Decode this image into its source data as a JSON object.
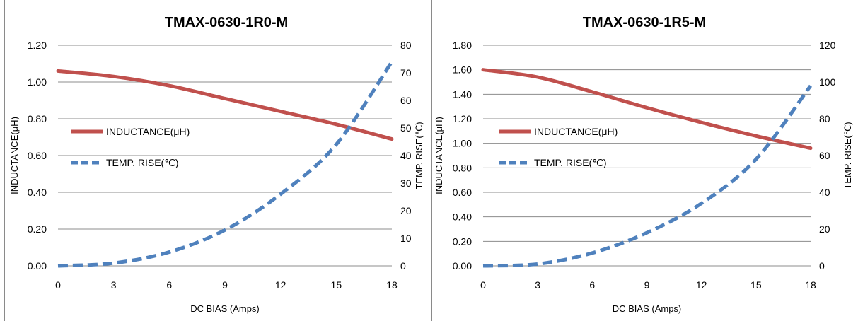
{
  "chart_data": [
    {
      "type": "line",
      "title": "TMAX-0630-1R0-M",
      "xlabel": "DC BIAS  (Amps)",
      "ylabel": "INDUCTANCE(μH)",
      "y2label": "TEMP. RISE(℃)",
      "xlim": [
        0,
        18
      ],
      "ylim": [
        0,
        1.2
      ],
      "y2lim": [
        0,
        80
      ],
      "xticks": [
        "0",
        "3",
        "6",
        "9",
        "12",
        "15",
        "18"
      ],
      "yticks": [
        "0.00",
        "0.20",
        "0.40",
        "0.60",
        "0.80",
        "1.00",
        "1.20"
      ],
      "y2ticks": [
        "0",
        "10",
        "20",
        "30",
        "40",
        "50",
        "60",
        "70",
        "80"
      ],
      "grid": "horizontal",
      "legend": "center-left",
      "series": [
        {
          "name": "INDUCTANCE(μH)",
          "axis": "left",
          "style": "solid",
          "color": "#c0504d",
          "x": [
            0,
            3,
            6,
            9,
            12,
            15,
            18
          ],
          "y": [
            1.06,
            1.03,
            0.98,
            0.91,
            0.84,
            0.77,
            0.69
          ]
        },
        {
          "name": "TEMP. RISE(℃)",
          "axis": "right",
          "style": "dashed",
          "color": "#4f81bd",
          "x": [
            0,
            3,
            6,
            9,
            12,
            15,
            18
          ],
          "y": [
            0,
            1,
            5,
            13,
            26,
            44,
            74
          ]
        }
      ]
    },
    {
      "type": "line",
      "title": "TMAX-0630-1R5-M",
      "xlabel": "DC BIAS  (Amps)",
      "ylabel": "INDUCTANCE(μH)",
      "y2label": "TEMP. RISE(℃)",
      "xlim": [
        0,
        18
      ],
      "ylim": [
        0,
        1.8
      ],
      "y2lim": [
        0,
        120
      ],
      "xticks": [
        "0",
        "3",
        "6",
        "9",
        "12",
        "15",
        "18"
      ],
      "yticks": [
        "0.00",
        "0.20",
        "0.40",
        "0.60",
        "0.80",
        "1.00",
        "1.20",
        "1.40",
        "1.60",
        "1.80"
      ],
      "y2ticks": [
        "0",
        "20",
        "40",
        "60",
        "80",
        "100",
        "120"
      ],
      "grid": "horizontal",
      "legend": "center-left",
      "series": [
        {
          "name": "INDUCTANCE(μH)",
          "axis": "left",
          "style": "solid",
          "color": "#c0504d",
          "x": [
            0,
            3,
            6,
            9,
            12,
            15,
            18
          ],
          "y": [
            1.6,
            1.54,
            1.42,
            1.29,
            1.17,
            1.06,
            0.96
          ]
        },
        {
          "name": "TEMP. RISE(℃)",
          "axis": "right",
          "style": "dashed",
          "color": "#4f81bd",
          "x": [
            0,
            3,
            6,
            9,
            12,
            15,
            18
          ],
          "y": [
            0,
            1,
            7,
            18,
            34,
            58,
            98
          ]
        }
      ]
    }
  ]
}
